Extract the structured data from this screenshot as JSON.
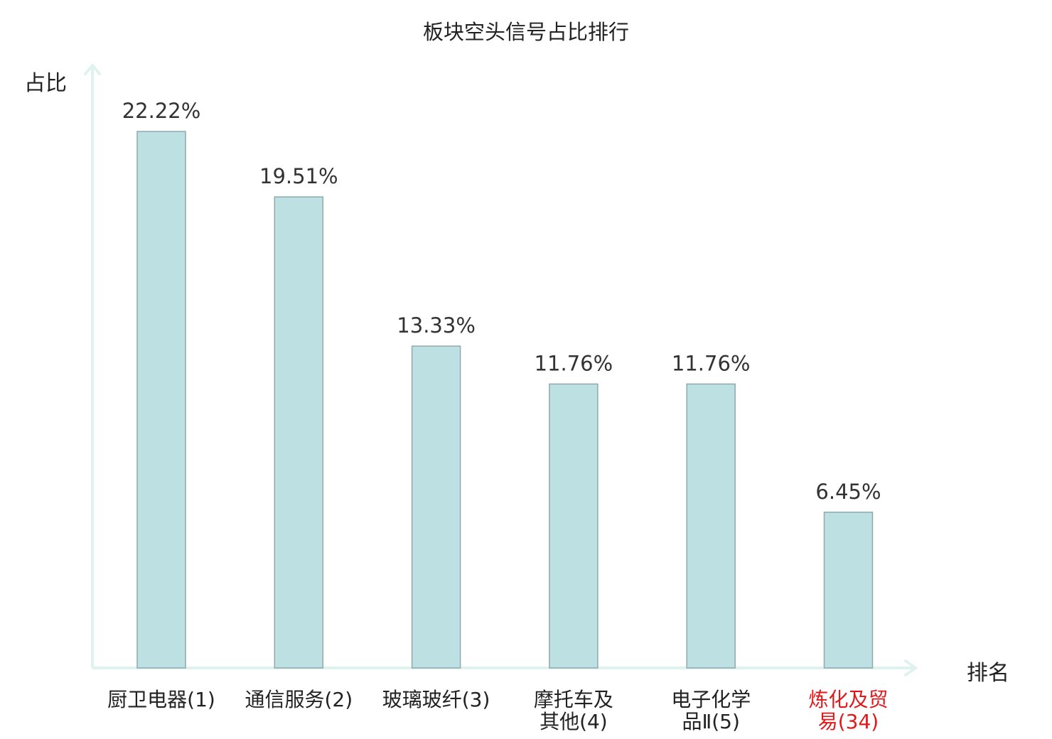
{
  "chart_data": {
    "type": "bar",
    "title": "板块空头信号占比排行",
    "ylabel": "占比",
    "xlabel": "排名",
    "ylim": [
      0,
      25
    ],
    "grid": false,
    "categories": [
      [
        "厨卫电器(1)"
      ],
      [
        "通信服务(2)"
      ],
      [
        "玻璃玻纤(3)"
      ],
      [
        "摩托车及",
        "其他(4)"
      ],
      [
        "电子化学",
        "品Ⅱ(5)"
      ],
      [
        "炼化及贸",
        "易(34)"
      ]
    ],
    "values": [
      22.22,
      19.51,
      13.33,
      11.76,
      11.76,
      6.45
    ],
    "value_labels": [
      "22.22%",
      "19.51%",
      "13.33%",
      "11.76%",
      "11.76%",
      "6.45%"
    ],
    "highlight_index": 5,
    "colors": {
      "bar_fill": "#bde0e3",
      "bar_stroke": "#8fa9ad",
      "axis": "#e0f2ef",
      "label_default": "#222222",
      "label_highlight": "#e0191b"
    }
  }
}
